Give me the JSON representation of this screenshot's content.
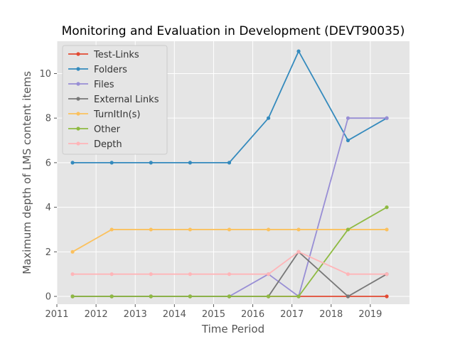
{
  "chart_data": {
    "type": "line",
    "title": "Monitoring and Evaluation in Development (DEVT90035)",
    "xlabel": "Time Period",
    "ylabel": "Maximum depth of LMS content items",
    "xlim": [
      2011.0,
      2020.0
    ],
    "ylim": [
      -0.35,
      11.45
    ],
    "xticks": [
      2011,
      2012,
      2013,
      2014,
      2015,
      2016,
      2017,
      2018,
      2019
    ],
    "yticks": [
      0,
      2,
      4,
      6,
      8,
      10
    ],
    "grid": true,
    "legend_position": "top-left",
    "x": [
      2011.4,
      2012.4,
      2013.4,
      2014.4,
      2015.4,
      2016.4,
      2017.17,
      2018.43,
      2019.42
    ],
    "series": [
      {
        "name": "Test-Links",
        "color": "#E24A33",
        "values": [
          0,
          0,
          0,
          0,
          0,
          0,
          0,
          0,
          0
        ]
      },
      {
        "name": "Folders",
        "color": "#348ABD",
        "values": [
          6,
          6,
          6,
          6,
          6,
          8,
          11,
          7,
          8
        ]
      },
      {
        "name": "Files",
        "color": "#988ED5",
        "values": [
          0,
          0,
          0,
          0,
          0,
          1,
          0,
          8,
          8
        ]
      },
      {
        "name": "External Links",
        "color": "#777777",
        "values": [
          0,
          0,
          0,
          0,
          0,
          0,
          2,
          0,
          1
        ]
      },
      {
        "name": "TurnItIn(s)",
        "color": "#FBC15E",
        "values": [
          2,
          3,
          3,
          3,
          3,
          3,
          3,
          3,
          3
        ]
      },
      {
        "name": "Other",
        "color": "#8EBA42",
        "values": [
          0,
          0,
          0,
          0,
          0,
          0,
          0,
          3,
          4
        ]
      },
      {
        "name": "Depth",
        "color": "#FFB5B8",
        "values": [
          1,
          1,
          1,
          1,
          1,
          1,
          2,
          1,
          1
        ]
      }
    ]
  }
}
